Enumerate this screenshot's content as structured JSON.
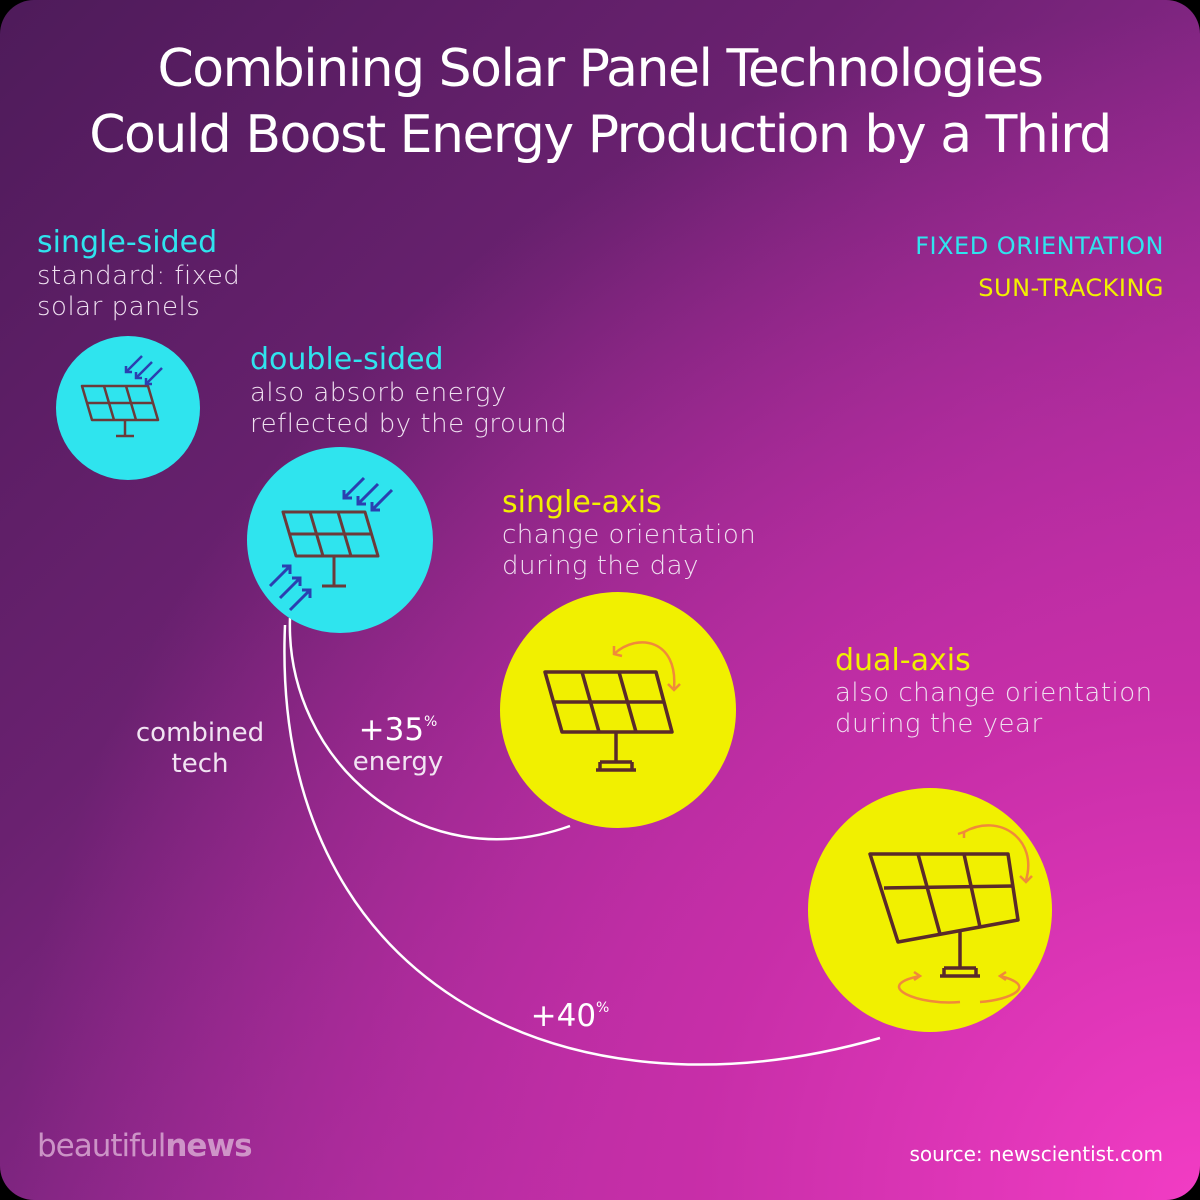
{
  "title": {
    "line1": "Combining Solar Panel Technologies",
    "line2": "Could Boost Energy Production by a Third"
  },
  "legend": {
    "fixed": "FIXED ORIENTATION",
    "tracking": "SUN-TRACKING"
  },
  "items": {
    "single_sided": {
      "title": "single-sided",
      "desc1": "standard: fixed",
      "desc2": "solar panels",
      "category": "fixed"
    },
    "double_sided": {
      "title": "double-sided",
      "desc1": "also absorb energy",
      "desc2": "reflected by the ground",
      "category": "fixed"
    },
    "single_axis": {
      "title": "single-axis",
      "desc1": "change orientation",
      "desc2": "during the day",
      "category": "tracking"
    },
    "dual_axis": {
      "title": "dual-axis",
      "desc1": "also change orientation",
      "desc2": "during the year",
      "category": "tracking"
    }
  },
  "combined": {
    "line1": "combined",
    "line2": "tech"
  },
  "gains": {
    "single_axis_value": "+35",
    "single_axis_unit": "%",
    "single_axis_label": "energy",
    "dual_axis_value": "+40",
    "dual_axis_unit": "%"
  },
  "footer": {
    "brand_a": "beautiful",
    "brand_b": "news",
    "source": "source: newscientist.com"
  },
  "colors": {
    "fixed": "#2fe4ee",
    "tracking": "#f1f000",
    "icon_stroke": "#5a2a2a",
    "arrow_blue": "#2b3fb0",
    "arrow_orange": "#f08a3a"
  }
}
